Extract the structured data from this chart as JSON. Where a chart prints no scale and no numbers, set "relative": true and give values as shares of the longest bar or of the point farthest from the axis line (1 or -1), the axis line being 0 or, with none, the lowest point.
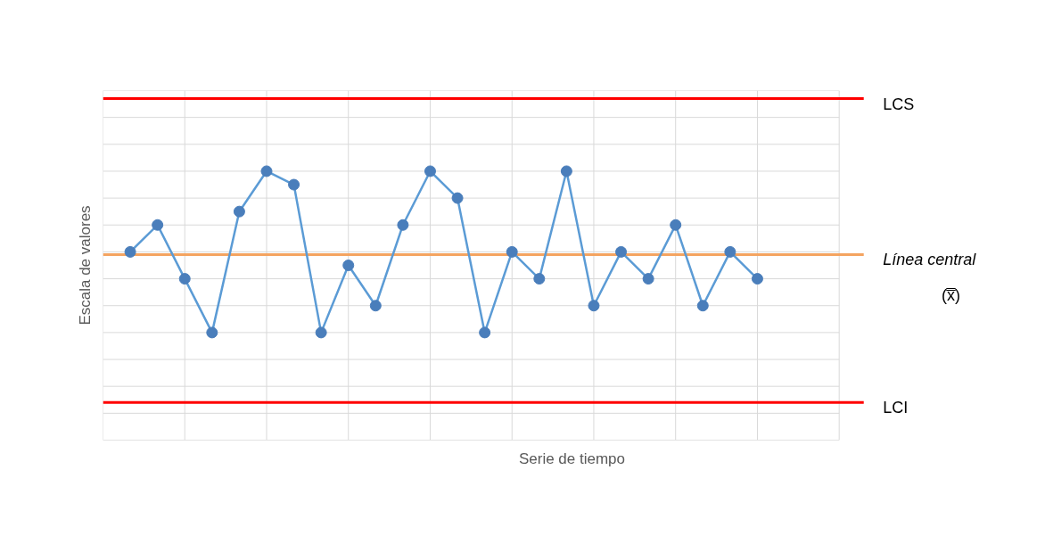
{
  "chart_data": {
    "type": "line",
    "relative": true,
    "xlabel": "Serie de tiempo",
    "ylabel": "Escala de valores",
    "categories": [
      null,
      null,
      null,
      null,
      null,
      null,
      null,
      null,
      null,
      null,
      null,
      null,
      null,
      null,
      null,
      null,
      null,
      null,
      null,
      null,
      null,
      null,
      null,
      null
    ],
    "series": [
      {
        "color": "#5b9bd5",
        "values": [
          0.7,
          0.8,
          0.6,
          0.4,
          0.85,
          1.0,
          0.95,
          0.4,
          0.65,
          0.5,
          0.8,
          1.0,
          0.9,
          0.4,
          0.7,
          0.6,
          1.0,
          0.5,
          0.7,
          0.6,
          0.8,
          0.5,
          0.7,
          0.6
        ]
      }
    ],
    "marker": "circle",
    "grid": true,
    "ref_lines": [
      {
        "axis": "y",
        "value": 1.27,
        "label": "LCS",
        "color": "#ff0000"
      },
      {
        "axis": "y",
        "value": 0.69,
        "label": "Línea central\n(x̿)",
        "color": "#f4a460"
      },
      {
        "axis": "y",
        "value": 0.14,
        "label": "LCI",
        "color": "#ff0000"
      }
    ]
  }
}
